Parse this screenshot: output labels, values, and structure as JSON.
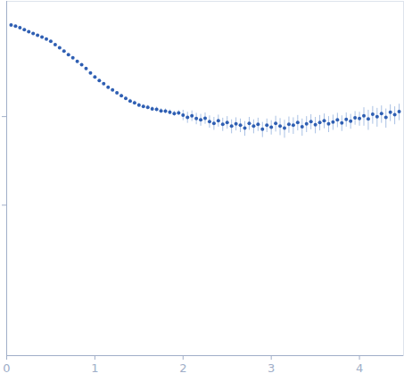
{
  "chart_data": {
    "type": "scatter",
    "log": "y",
    "tick_labels": "x",
    "xlim": [
      0,
      4.5
    ],
    "xticks": [
      0,
      1,
      2,
      3,
      4
    ],
    "ylim": [
      0.002,
      20
    ],
    "yticks": [
      0.1,
      1
    ],
    "series": [
      {
        "color": "#2f5fb3",
        "error_color": "#a9c1e4",
        "marker": "circle",
        "x": [
          0.05,
          0.1,
          0.15,
          0.2,
          0.25,
          0.3,
          0.35,
          0.4,
          0.45,
          0.5,
          0.55,
          0.6,
          0.65,
          0.7,
          0.75,
          0.8,
          0.85,
          0.9,
          0.95,
          1.0,
          1.05,
          1.1,
          1.15,
          1.2,
          1.25,
          1.3,
          1.35,
          1.4,
          1.45,
          1.5,
          1.55,
          1.6,
          1.65,
          1.7,
          1.75,
          1.8,
          1.85,
          1.9,
          1.95,
          2.0,
          2.05,
          2.1,
          2.15,
          2.2,
          2.25,
          2.3,
          2.35,
          2.4,
          2.45,
          2.5,
          2.55,
          2.6,
          2.65,
          2.7,
          2.75,
          2.8,
          2.85,
          2.9,
          2.95,
          3.0,
          3.05,
          3.1,
          3.15,
          3.2,
          3.25,
          3.3,
          3.35,
          3.4,
          3.45,
          3.5,
          3.55,
          3.6,
          3.65,
          3.7,
          3.75,
          3.8,
          3.85,
          3.9,
          3.95,
          4.0,
          4.05,
          4.1,
          4.15,
          4.2,
          4.25,
          4.3,
          4.35,
          4.4,
          4.45
        ],
        "values": [
          10.8,
          10.5,
          10.1,
          9.6,
          9.1,
          8.7,
          8.3,
          7.9,
          7.5,
          7.1,
          6.5,
          6.0,
          5.5,
          5.0,
          4.6,
          4.2,
          3.85,
          3.5,
          3.1,
          2.8,
          2.55,
          2.35,
          2.15,
          2.0,
          1.85,
          1.72,
          1.6,
          1.5,
          1.43,
          1.35,
          1.3,
          1.27,
          1.22,
          1.21,
          1.16,
          1.15,
          1.12,
          1.08,
          1.1,
          1.04,
          0.98,
          1.02,
          0.95,
          0.92,
          0.96,
          0.88,
          0.84,
          0.9,
          0.82,
          0.86,
          0.78,
          0.83,
          0.8,
          0.74,
          0.84,
          0.78,
          0.82,
          0.72,
          0.8,
          0.76,
          0.84,
          0.78,
          0.74,
          0.82,
          0.8,
          0.86,
          0.77,
          0.83,
          0.88,
          0.81,
          0.86,
          0.9,
          0.83,
          0.87,
          0.92,
          0.85,
          0.93,
          0.89,
          0.97,
          0.95,
          1.02,
          0.94,
          1.06,
          1.0,
          1.08,
          0.98,
          1.12,
          1.05,
          1.14
        ],
        "errors": [
          0.2,
          0.2,
          0.18,
          0.18,
          0.16,
          0.16,
          0.15,
          0.14,
          0.13,
          0.12,
          0.11,
          0.1,
          0.1,
          0.09,
          0.09,
          0.08,
          0.08,
          0.07,
          0.07,
          0.07,
          0.07,
          0.07,
          0.07,
          0.07,
          0.07,
          0.07,
          0.07,
          0.07,
          0.07,
          0.07,
          0.07,
          0.07,
          0.07,
          0.07,
          0.07,
          0.07,
          0.07,
          0.07,
          0.07,
          0.14,
          0.14,
          0.14,
          0.14,
          0.14,
          0.14,
          0.14,
          0.14,
          0.14,
          0.14,
          0.14,
          0.14,
          0.14,
          0.14,
          0.14,
          0.14,
          0.14,
          0.14,
          0.14,
          0.14,
          0.14,
          0.17,
          0.17,
          0.17,
          0.17,
          0.17,
          0.17,
          0.17,
          0.17,
          0.17,
          0.17,
          0.17,
          0.17,
          0.17,
          0.17,
          0.17,
          0.17,
          0.17,
          0.17,
          0.17,
          0.17,
          0.24,
          0.24,
          0.24,
          0.24,
          0.24,
          0.24,
          0.24,
          0.24,
          0.24
        ]
      }
    ]
  }
}
